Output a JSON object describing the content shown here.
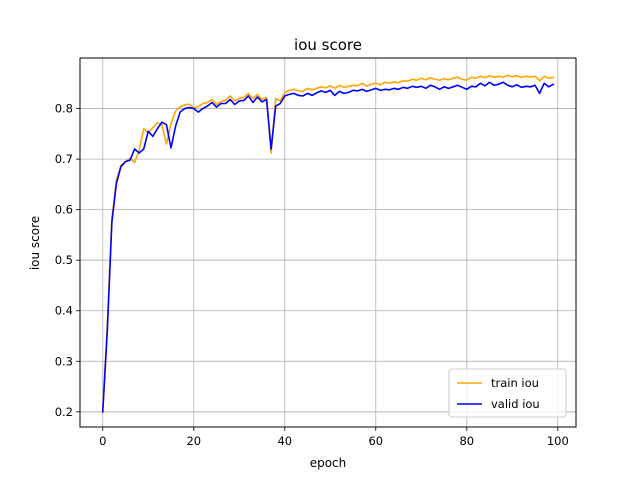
{
  "chart_data": {
    "type": "line",
    "title": "iou score",
    "xlabel": "epoch",
    "ylabel": "iou score",
    "xlim": [
      -5,
      104
    ],
    "ylim": [
      0.17,
      0.9
    ],
    "xticks": [
      0,
      20,
      40,
      60,
      80,
      100
    ],
    "yticks": [
      0.2,
      0.3,
      0.4,
      0.5,
      0.6,
      0.7,
      0.8
    ],
    "grid": true,
    "legend_position": "lower-right",
    "series": [
      {
        "name": "train iou",
        "color": "#FFA500",
        "x": [
          0,
          1,
          2,
          3,
          4,
          5,
          6,
          7,
          8,
          9,
          10,
          11,
          12,
          13,
          14,
          15,
          16,
          17,
          18,
          19,
          20,
          21,
          22,
          23,
          24,
          25,
          26,
          27,
          28,
          29,
          30,
          31,
          32,
          33,
          34,
          35,
          36,
          37,
          38,
          39,
          40,
          41,
          42,
          43,
          44,
          45,
          46,
          47,
          48,
          49,
          50,
          51,
          52,
          53,
          54,
          55,
          56,
          57,
          58,
          59,
          60,
          61,
          62,
          63,
          64,
          65,
          66,
          67,
          68,
          69,
          70,
          71,
          72,
          73,
          74,
          75,
          76,
          77,
          78,
          79,
          80,
          81,
          82,
          83,
          84,
          85,
          86,
          87,
          88,
          89,
          90,
          91,
          92,
          93,
          94,
          95,
          96,
          97,
          98,
          99
        ],
        "values": [
          0.203,
          0.37,
          0.58,
          0.658,
          0.688,
          0.695,
          0.702,
          0.693,
          0.718,
          0.76,
          0.752,
          0.762,
          0.772,
          0.768,
          0.73,
          0.77,
          0.795,
          0.803,
          0.807,
          0.809,
          0.801,
          0.804,
          0.81,
          0.812,
          0.818,
          0.808,
          0.814,
          0.816,
          0.825,
          0.815,
          0.82,
          0.822,
          0.83,
          0.82,
          0.828,
          0.818,
          0.822,
          0.712,
          0.82,
          0.815,
          0.832,
          0.836,
          0.838,
          0.835,
          0.834,
          0.84,
          0.837,
          0.84,
          0.843,
          0.841,
          0.845,
          0.84,
          0.846,
          0.842,
          0.844,
          0.846,
          0.845,
          0.85,
          0.844,
          0.848,
          0.85,
          0.847,
          0.852,
          0.85,
          0.853,
          0.851,
          0.855,
          0.854,
          0.858,
          0.856,
          0.86,
          0.857,
          0.861,
          0.858,
          0.856,
          0.859,
          0.857,
          0.86,
          0.862,
          0.858,
          0.856,
          0.862,
          0.86,
          0.864,
          0.861,
          0.865,
          0.862,
          0.864,
          0.862,
          0.866,
          0.863,
          0.865,
          0.862,
          0.864,
          0.862,
          0.864,
          0.855,
          0.864,
          0.86,
          0.862
        ]
      },
      {
        "name": "valid iou",
        "color": "#0000FF",
        "x": [
          0,
          1,
          2,
          3,
          4,
          5,
          6,
          7,
          8,
          9,
          10,
          11,
          12,
          13,
          14,
          15,
          16,
          17,
          18,
          19,
          20,
          21,
          22,
          23,
          24,
          25,
          26,
          27,
          28,
          29,
          30,
          31,
          32,
          33,
          34,
          35,
          36,
          37,
          38,
          39,
          40,
          41,
          42,
          43,
          44,
          45,
          46,
          47,
          48,
          49,
          50,
          51,
          52,
          53,
          54,
          55,
          56,
          57,
          58,
          59,
          60,
          61,
          62,
          63,
          64,
          65,
          66,
          67,
          68,
          69,
          70,
          71,
          72,
          73,
          74,
          75,
          76,
          77,
          78,
          79,
          80,
          81,
          82,
          83,
          84,
          85,
          86,
          87,
          88,
          89,
          90,
          91,
          92,
          93,
          94,
          95,
          96,
          97,
          98,
          99
        ],
        "values": [
          0.2,
          0.36,
          0.575,
          0.652,
          0.685,
          0.695,
          0.698,
          0.72,
          0.712,
          0.72,
          0.755,
          0.745,
          0.76,
          0.773,
          0.768,
          0.722,
          0.765,
          0.793,
          0.8,
          0.802,
          0.8,
          0.793,
          0.8,
          0.805,
          0.812,
          0.803,
          0.81,
          0.81,
          0.818,
          0.808,
          0.815,
          0.816,
          0.825,
          0.812,
          0.823,
          0.813,
          0.818,
          0.72,
          0.805,
          0.81,
          0.825,
          0.828,
          0.83,
          0.826,
          0.825,
          0.83,
          0.826,
          0.831,
          0.835,
          0.832,
          0.836,
          0.826,
          0.834,
          0.83,
          0.832,
          0.836,
          0.835,
          0.838,
          0.834,
          0.837,
          0.84,
          0.836,
          0.838,
          0.837,
          0.84,
          0.838,
          0.842,
          0.84,
          0.844,
          0.842,
          0.844,
          0.84,
          0.846,
          0.843,
          0.838,
          0.843,
          0.84,
          0.843,
          0.846,
          0.842,
          0.838,
          0.844,
          0.843,
          0.85,
          0.845,
          0.852,
          0.846,
          0.848,
          0.852,
          0.846,
          0.843,
          0.847,
          0.842,
          0.844,
          0.843,
          0.846,
          0.83,
          0.85,
          0.843,
          0.848
        ]
      }
    ]
  }
}
